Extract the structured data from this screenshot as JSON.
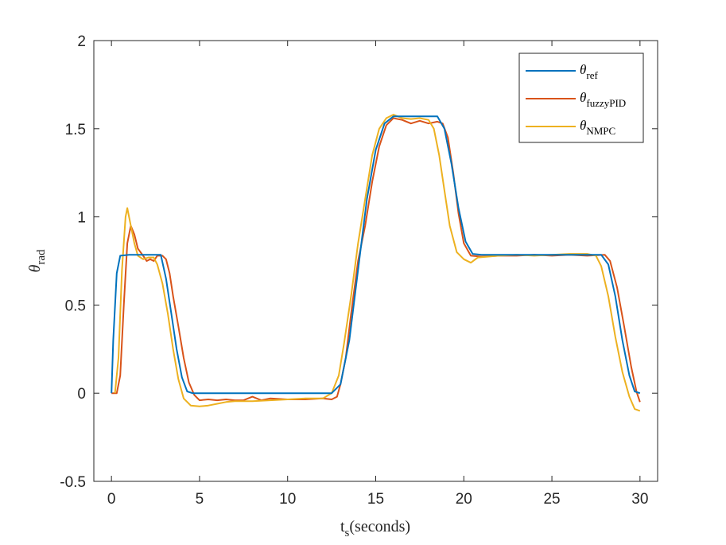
{
  "chart_data": {
    "type": "line",
    "xlim": [
      -1,
      31
    ],
    "ylim": [
      -0.5,
      2
    ],
    "x_ticks": [
      0,
      5,
      10,
      15,
      20,
      25,
      30
    ],
    "y_ticks": [
      -0.5,
      0,
      0.5,
      1,
      1.5,
      2
    ],
    "x_tick_labels": [
      "0",
      "5",
      "10",
      "15",
      "20",
      "25",
      "30"
    ],
    "y_tick_labels": [
      "-0.5",
      "0",
      "0.5",
      "1",
      "1.5",
      "2"
    ],
    "xlabel": {
      "main": "t",
      "sub": "s",
      "rest": "(seconds)"
    },
    "ylabel": {
      "main": "θ",
      "sub": "rad"
    },
    "grid": false,
    "legend_position": "top-right",
    "series": [
      {
        "name": "θref",
        "legend_main": "θ",
        "legend_sub": "ref",
        "color": "#0072BD",
        "points": [
          [
            0,
            0
          ],
          [
            0.1,
            0.3
          ],
          [
            0.3,
            0.68
          ],
          [
            0.5,
            0.78
          ],
          [
            1,
            0.785
          ],
          [
            2,
            0.785
          ],
          [
            2.8,
            0.785
          ],
          [
            3.1,
            0.65
          ],
          [
            3.4,
            0.45
          ],
          [
            3.7,
            0.25
          ],
          [
            4.0,
            0.09
          ],
          [
            4.3,
            0.01
          ],
          [
            4.6,
            0
          ],
          [
            8,
            0
          ],
          [
            12.5,
            0
          ],
          [
            13.0,
            0.05
          ],
          [
            13.5,
            0.3
          ],
          [
            14.0,
            0.7
          ],
          [
            14.5,
            1.1
          ],
          [
            15.0,
            1.38
          ],
          [
            15.5,
            1.53
          ],
          [
            16.0,
            1.57
          ],
          [
            18.5,
            1.57
          ],
          [
            18.9,
            1.5
          ],
          [
            19.3,
            1.3
          ],
          [
            19.7,
            1.05
          ],
          [
            20.1,
            0.86
          ],
          [
            20.5,
            0.79
          ],
          [
            21,
            0.785
          ],
          [
            27.8,
            0.785
          ],
          [
            28.2,
            0.73
          ],
          [
            28.6,
            0.55
          ],
          [
            29.0,
            0.3
          ],
          [
            29.4,
            0.1
          ],
          [
            29.7,
            0.01
          ],
          [
            30,
            0
          ]
        ]
      },
      {
        "name": "θfuzzyPID",
        "legend_main": "θ",
        "legend_sub": "fuzzyPID",
        "color": "#D95319",
        "points": [
          [
            0,
            0
          ],
          [
            0.3,
            0
          ],
          [
            0.5,
            0.1
          ],
          [
            0.7,
            0.5
          ],
          [
            0.9,
            0.85
          ],
          [
            1.1,
            0.95
          ],
          [
            1.3,
            0.9
          ],
          [
            1.5,
            0.82
          ],
          [
            1.8,
            0.78
          ],
          [
            2.0,
            0.75
          ],
          [
            2.2,
            0.76
          ],
          [
            2.4,
            0.75
          ],
          [
            2.6,
            0.78
          ],
          [
            2.9,
            0.78
          ],
          [
            3.1,
            0.76
          ],
          [
            3.3,
            0.68
          ],
          [
            3.5,
            0.55
          ],
          [
            3.8,
            0.38
          ],
          [
            4.1,
            0.2
          ],
          [
            4.4,
            0.06
          ],
          [
            4.7,
            -0.01
          ],
          [
            5.0,
            -0.04
          ],
          [
            5.5,
            -0.035
          ],
          [
            6,
            -0.04
          ],
          [
            6.5,
            -0.035
          ],
          [
            7,
            -0.04
          ],
          [
            7.5,
            -0.04
          ],
          [
            8,
            -0.02
          ],
          [
            8.5,
            -0.04
          ],
          [
            9,
            -0.03
          ],
          [
            10,
            -0.035
          ],
          [
            11,
            -0.035
          ],
          [
            12,
            -0.03
          ],
          [
            12.5,
            -0.035
          ],
          [
            12.8,
            -0.02
          ],
          [
            13.0,
            0.05
          ],
          [
            13.3,
            0.2
          ],
          [
            13.6,
            0.45
          ],
          [
            14.0,
            0.75
          ],
          [
            14.4,
            0.95
          ],
          [
            14.8,
            1.2
          ],
          [
            15.2,
            1.4
          ],
          [
            15.6,
            1.52
          ],
          [
            16.0,
            1.56
          ],
          [
            16.5,
            1.55
          ],
          [
            17,
            1.53
          ],
          [
            17.5,
            1.545
          ],
          [
            18,
            1.53
          ],
          [
            18.5,
            1.54
          ],
          [
            18.8,
            1.53
          ],
          [
            19.1,
            1.45
          ],
          [
            19.4,
            1.25
          ],
          [
            19.7,
            1.02
          ],
          [
            20.0,
            0.85
          ],
          [
            20.4,
            0.78
          ],
          [
            21,
            0.775
          ],
          [
            22,
            0.78
          ],
          [
            23,
            0.78
          ],
          [
            24,
            0.785
          ],
          [
            25,
            0.78
          ],
          [
            26,
            0.785
          ],
          [
            27,
            0.78
          ],
          [
            28,
            0.785
          ],
          [
            28.3,
            0.75
          ],
          [
            28.7,
            0.6
          ],
          [
            29.1,
            0.38
          ],
          [
            29.5,
            0.15
          ],
          [
            29.8,
            0.01
          ],
          [
            30,
            -0.05
          ]
        ]
      },
      {
        "name": "θNMPC",
        "legend_main": "θ",
        "legend_sub": "NMPC",
        "color": "#EDB120",
        "points": [
          [
            0.2,
            0
          ],
          [
            0.4,
            0.2
          ],
          [
            0.6,
            0.7
          ],
          [
            0.8,
            1.0
          ],
          [
            0.9,
            1.05
          ],
          [
            1.1,
            0.95
          ],
          [
            1.3,
            0.85
          ],
          [
            1.5,
            0.78
          ],
          [
            1.8,
            0.76
          ],
          [
            2.1,
            0.77
          ],
          [
            2.4,
            0.77
          ],
          [
            2.6,
            0.73
          ],
          [
            2.9,
            0.62
          ],
          [
            3.2,
            0.45
          ],
          [
            3.5,
            0.25
          ],
          [
            3.8,
            0.08
          ],
          [
            4.1,
            -0.03
          ],
          [
            4.5,
            -0.07
          ],
          [
            5.0,
            -0.075
          ],
          [
            5.5,
            -0.07
          ],
          [
            6,
            -0.06
          ],
          [
            6.5,
            -0.05
          ],
          [
            7,
            -0.045
          ],
          [
            8,
            -0.045
          ],
          [
            9,
            -0.04
          ],
          [
            10,
            -0.035
          ],
          [
            11,
            -0.03
          ],
          [
            12,
            -0.03
          ],
          [
            12.5,
            0.0
          ],
          [
            12.9,
            0.1
          ],
          [
            13.2,
            0.28
          ],
          [
            13.6,
            0.55
          ],
          [
            14.0,
            0.85
          ],
          [
            14.4,
            1.1
          ],
          [
            14.8,
            1.35
          ],
          [
            15.2,
            1.5
          ],
          [
            15.6,
            1.56
          ],
          [
            16.0,
            1.58
          ],
          [
            16.5,
            1.56
          ],
          [
            17,
            1.555
          ],
          [
            17.5,
            1.56
          ],
          [
            18,
            1.55
          ],
          [
            18.3,
            1.5
          ],
          [
            18.6,
            1.35
          ],
          [
            18.9,
            1.15
          ],
          [
            19.2,
            0.95
          ],
          [
            19.6,
            0.8
          ],
          [
            20.0,
            0.76
          ],
          [
            20.4,
            0.74
          ],
          [
            20.8,
            0.77
          ],
          [
            22,
            0.78
          ],
          [
            23,
            0.785
          ],
          [
            24,
            0.78
          ],
          [
            25,
            0.785
          ],
          [
            26,
            0.79
          ],
          [
            27,
            0.79
          ],
          [
            27.5,
            0.78
          ],
          [
            27.8,
            0.72
          ],
          [
            28.2,
            0.55
          ],
          [
            28.6,
            0.32
          ],
          [
            29.0,
            0.12
          ],
          [
            29.4,
            -0.02
          ],
          [
            29.7,
            -0.09
          ],
          [
            30,
            -0.1
          ]
        ]
      }
    ]
  }
}
